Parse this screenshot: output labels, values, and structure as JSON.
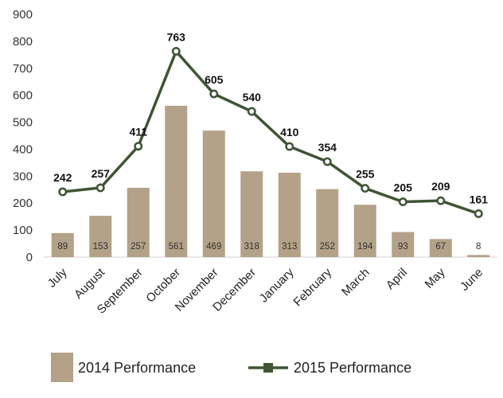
{
  "chart_data": {
    "type": "bar",
    "categories": [
      "July",
      "August",
      "September",
      "October",
      "November",
      "December",
      "January",
      "February",
      "March",
      "April",
      "May",
      "June"
    ],
    "series": [
      {
        "name": "2014 Performance",
        "type": "bar",
        "color": "#b3a287",
        "values": [
          89,
          153,
          257,
          561,
          469,
          318,
          313,
          252,
          194,
          93,
          67,
          8
        ]
      },
      {
        "name": "2015 Performance",
        "type": "line",
        "color": "#3f5533",
        "values": [
          242,
          257,
          411,
          763,
          605,
          540,
          410,
          354,
          255,
          205,
          209,
          161
        ]
      }
    ],
    "title": "",
    "xlabel": "",
    "ylabel": "",
    "ylim": [
      0,
      900
    ],
    "yticks": [
      0,
      100,
      200,
      300,
      400,
      500,
      600,
      700,
      800,
      900
    ],
    "grid": false,
    "legend": "bottom"
  }
}
